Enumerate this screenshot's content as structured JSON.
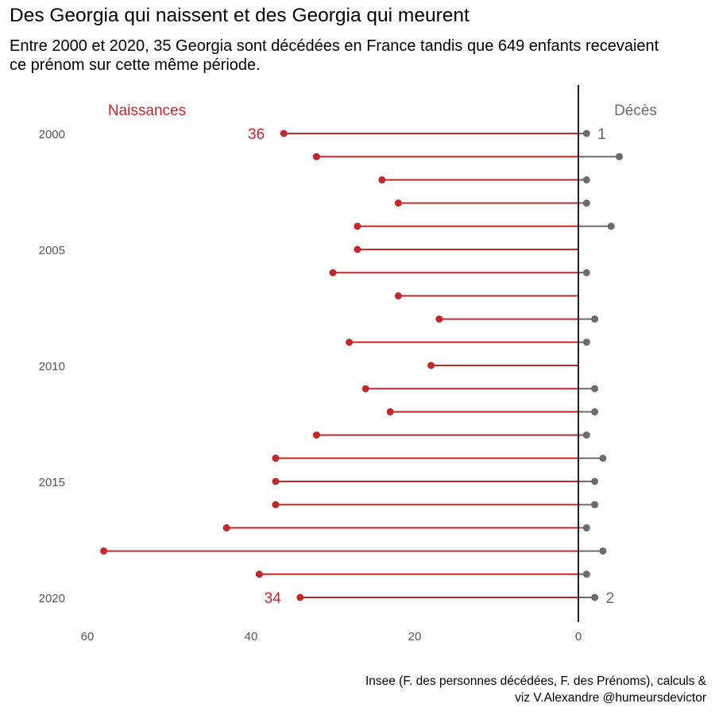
{
  "title": "Des Georgia qui naissent et des Georgia qui meurent",
  "subtitle": "Entre 2000 et 2020, 35 Georgia sont décédées en France tandis que 649 enfants recevaient ce prénom sur cette même période.",
  "caption_line1": "Insee (F. des personnes décédées, F. des Prénoms), calculs &",
  "caption_line2": "viz V.Alexandre @humeursdevictor",
  "colors": {
    "births": "#c4272a",
    "deaths": "#6b6b6b",
    "axis": "#222222"
  },
  "chart_data": {
    "type": "lollipop",
    "years": [
      2000,
      2001,
      2002,
      2003,
      2004,
      2005,
      2006,
      2007,
      2008,
      2009,
      2010,
      2011,
      2012,
      2013,
      2014,
      2015,
      2016,
      2017,
      2018,
      2019,
      2020
    ],
    "series": [
      {
        "name": "Naissances",
        "values": [
          36,
          32,
          24,
          22,
          27,
          27,
          30,
          22,
          17,
          28,
          18,
          26,
          23,
          32,
          37,
          37,
          37,
          43,
          58,
          39,
          34
        ]
      },
      {
        "name": "Décès",
        "values": [
          1,
          5,
          1,
          1,
          4,
          0,
          1,
          0,
          2,
          1,
          0,
          2,
          2,
          1,
          3,
          2,
          2,
          1,
          3,
          1,
          2
        ]
      }
    ],
    "y_tick_labels": [
      "2000",
      "2005",
      "2010",
      "2015",
      "2020"
    ],
    "x_tick_labels": [
      "60",
      "40",
      "20",
      "0"
    ],
    "x_tick_values": [
      60,
      40,
      20,
      0
    ],
    "annotations": [
      {
        "series": "Naissances",
        "year": 2000,
        "text": "36"
      },
      {
        "series": "Naissances",
        "year": 2020,
        "text": "34"
      },
      {
        "series": "Décès",
        "year": 2000,
        "text": "1"
      },
      {
        "series": "Décès",
        "year": 2020,
        "text": "2"
      }
    ],
    "grid": false
  }
}
